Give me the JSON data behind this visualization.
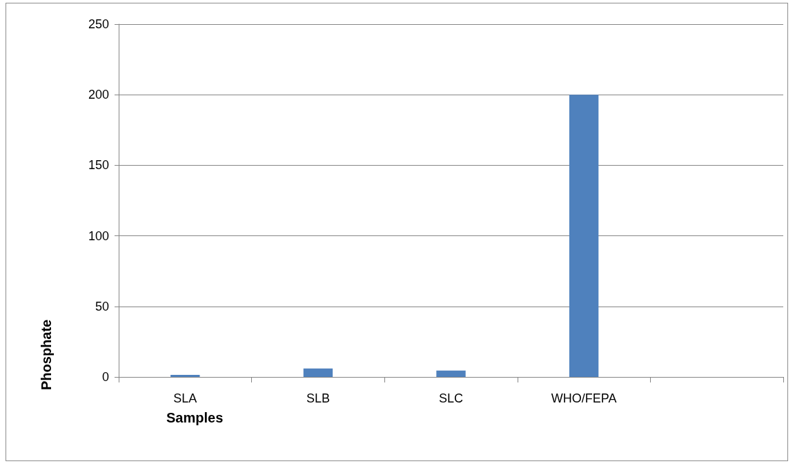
{
  "chart_data": {
    "type": "bar",
    "xlabel": "Samples",
    "ylabel": "Phosphate",
    "categories": [
      "SLA",
      "SLB",
      "SLC",
      "WHO/FEPA",
      null
    ],
    "values": [
      1.5,
      6,
      4.5,
      200,
      null
    ],
    "color": "#4f81bd",
    "ylim": [
      0,
      250
    ],
    "yticks": [
      0,
      50,
      100,
      150,
      200,
      250
    ],
    "grid": "y"
  }
}
